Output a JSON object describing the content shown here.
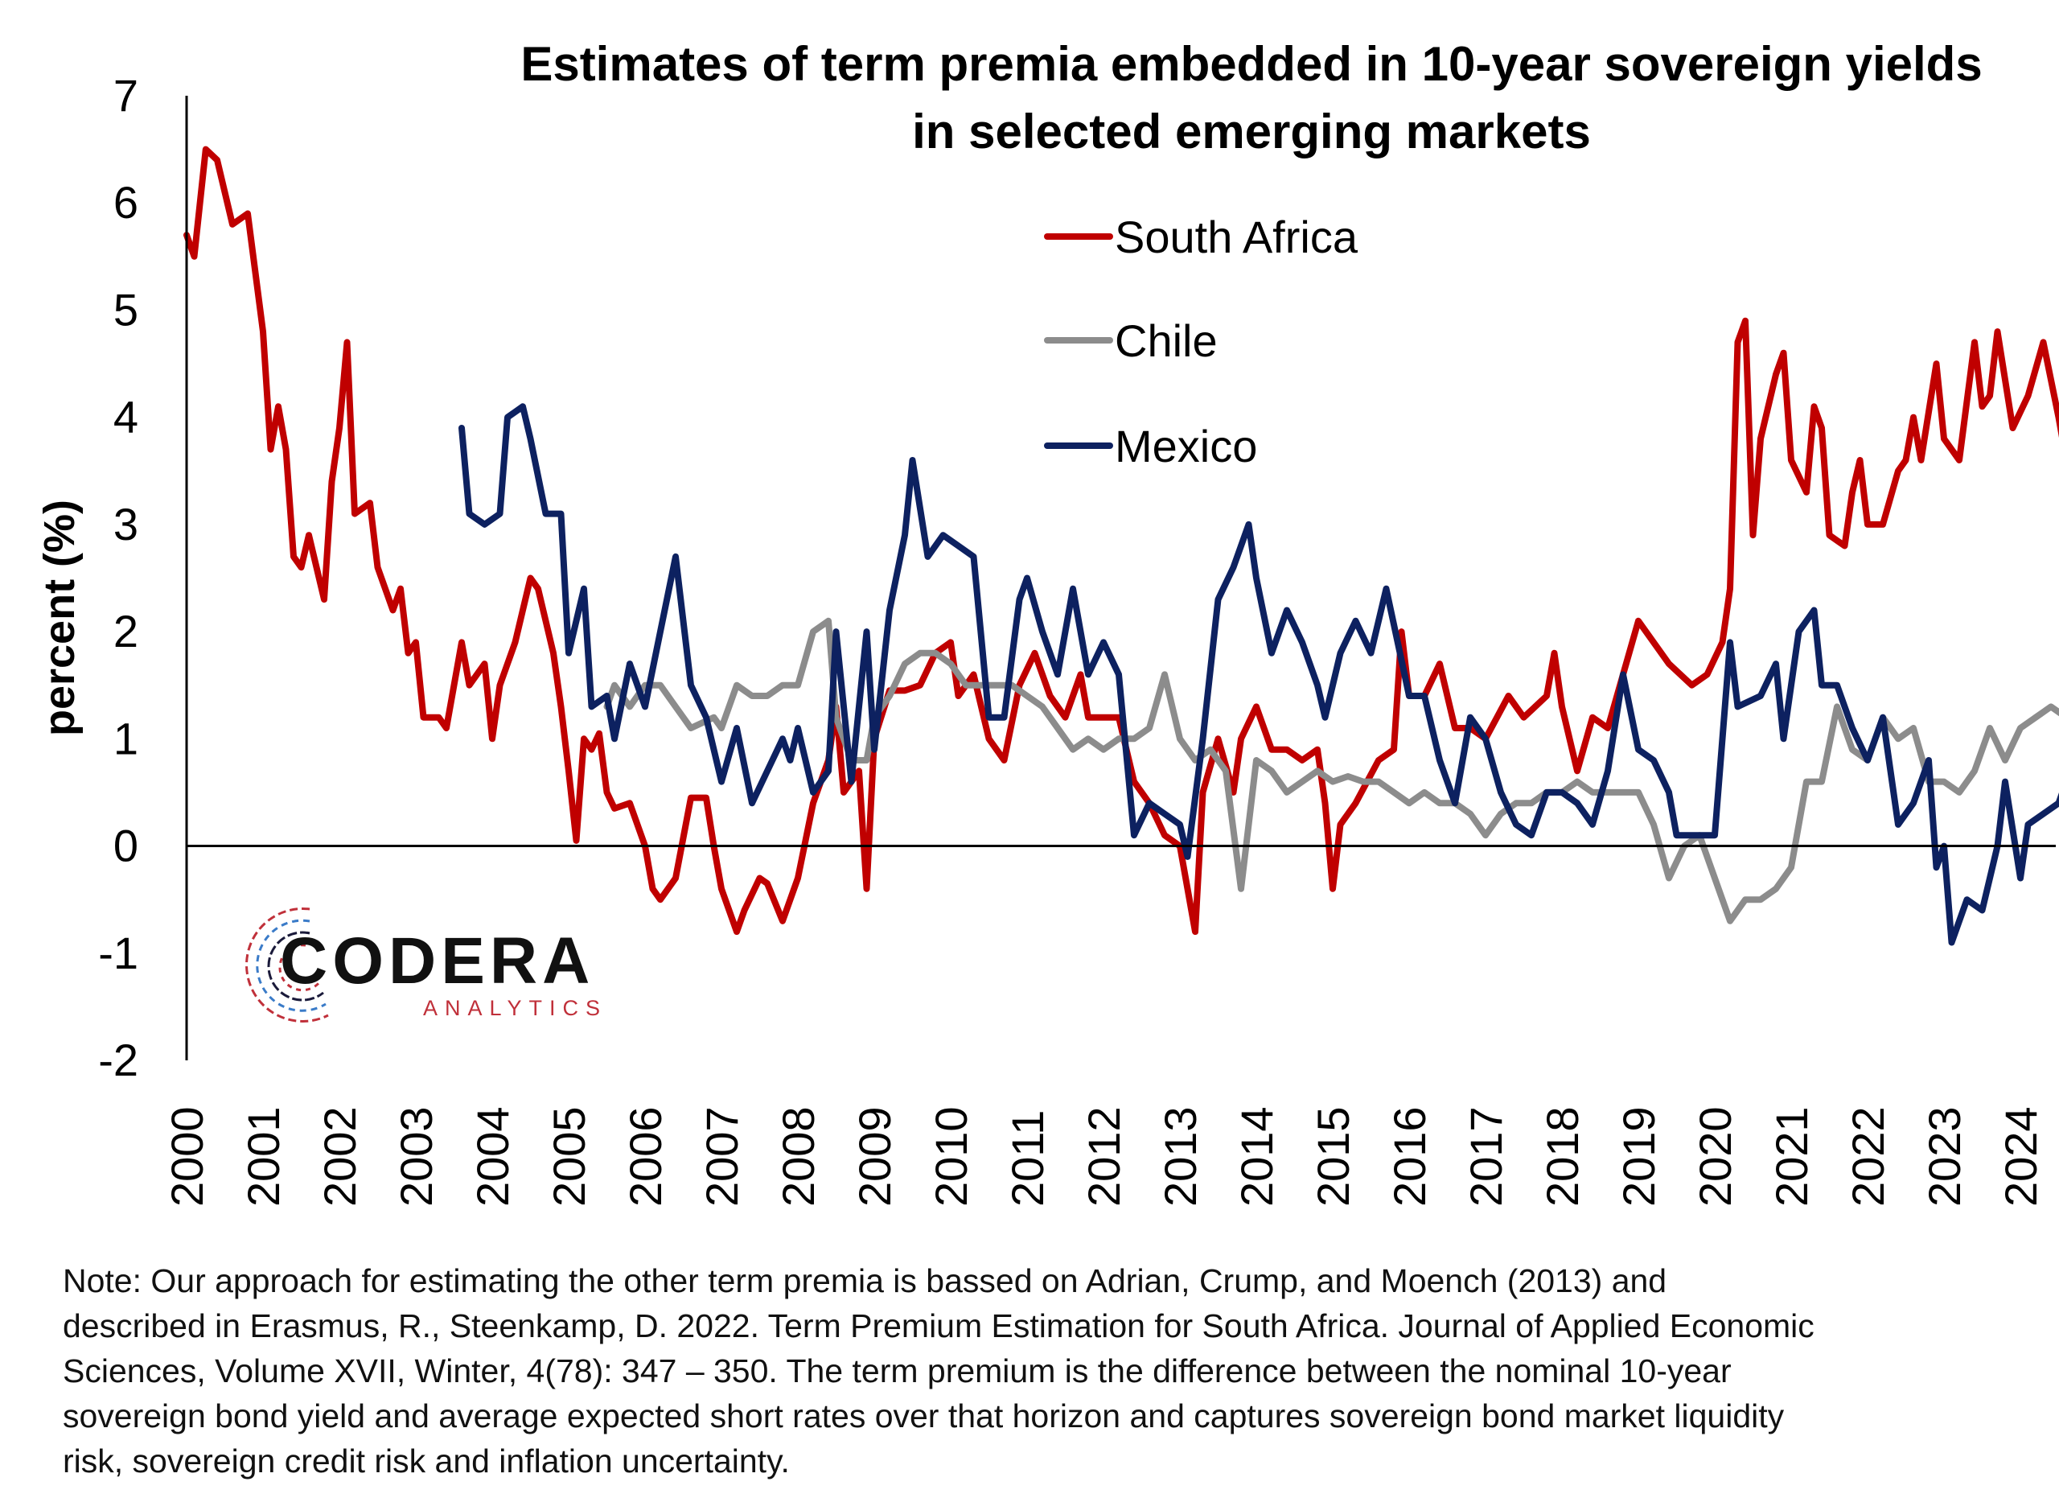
{
  "chart_data": {
    "type": "line",
    "title": [
      "Estimates of term premia embedded in 10-year sovereign yields",
      "in selected emerging markets"
    ],
    "xlabel": "",
    "ylabel": "percent (%)",
    "ylim": [
      -2,
      7
    ],
    "yticks": [
      -2,
      -1,
      0,
      1,
      2,
      3,
      4,
      5,
      6,
      7
    ],
    "xlim": [
      2000,
      2024.7
    ],
    "xticks": [
      "2000",
      "2001",
      "2002",
      "2003",
      "2004",
      "2005",
      "2006",
      "2007",
      "2008",
      "2009",
      "2010",
      "2011",
      "2012",
      "2013",
      "2014",
      "2015",
      "2016",
      "2017",
      "2018",
      "2019",
      "2020",
      "2021",
      "2022",
      "2023",
      "2024"
    ],
    "grid": false,
    "legend_position": "top-center",
    "series": [
      {
        "name": "South Africa",
        "color": "#C00000",
        "x": [
          2000.0,
          2000.1,
          2000.25,
          2000.4,
          2000.6,
          2000.8,
          2001.0,
          2001.1,
          2001.2,
          2001.3,
          2001.4,
          2001.5,
          2001.6,
          2001.8,
          2001.9,
          2002.0,
          2002.1,
          2002.2,
          2002.4,
          2002.5,
          2002.7,
          2002.8,
          2002.9,
          2003.0,
          2003.1,
          2003.3,
          2003.4,
          2003.6,
          2003.7,
          2003.9,
          2004.0,
          2004.1,
          2004.3,
          2004.5,
          2004.6,
          2004.8,
          2004.9,
          2005.0,
          2005.1,
          2005.2,
          2005.3,
          2005.4,
          2005.5,
          2005.6,
          2005.8,
          2006.0,
          2006.1,
          2006.2,
          2006.4,
          2006.6,
          2006.8,
          2006.9,
          2007.0,
          2007.2,
          2007.3,
          2007.5,
          2007.6,
          2007.8,
          2008.0,
          2008.2,
          2008.4,
          2008.5,
          2008.6,
          2008.8,
          2008.9,
          2009.0,
          2009.2,
          2009.4,
          2009.6,
          2009.8,
          2010.0,
          2010.1,
          2010.3,
          2010.5,
          2010.7,
          2010.9,
          2011.1,
          2011.3,
          2011.5,
          2011.7,
          2011.8,
          2012.0,
          2012.2,
          2012.4,
          2012.6,
          2012.8,
          2013.0,
          2013.2,
          2013.3,
          2013.5,
          2013.7,
          2013.8,
          2014.0,
          2014.2,
          2014.4,
          2014.6,
          2014.8,
          2014.9,
          2015.0,
          2015.1,
          2015.3,
          2015.6,
          2015.8,
          2015.9,
          2016.0,
          2016.2,
          2016.4,
          2016.6,
          2016.8,
          2017.0,
          2017.3,
          2017.5,
          2017.8,
          2017.9,
          2018.0,
          2018.2,
          2018.4,
          2018.6,
          2018.8,
          2019.0,
          2019.2,
          2019.4,
          2019.7,
          2019.9,
          2020.1,
          2020.2,
          2020.3,
          2020.4,
          2020.5,
          2020.6,
          2020.8,
          2020.9,
          2021.0,
          2021.2,
          2021.3,
          2021.4,
          2021.5,
          2021.7,
          2021.8,
          2021.9,
          2022.0,
          2022.2,
          2022.4,
          2022.5,
          2022.6,
          2022.7,
          2022.9,
          2023.0,
          2023.2,
          2023.4,
          2023.5,
          2023.6,
          2023.7,
          2023.9,
          2024.1,
          2024.3,
          2024.5,
          2024.6
        ],
        "values": [
          5.7,
          5.5,
          6.5,
          6.4,
          5.8,
          5.9,
          4.8,
          3.7,
          4.1,
          3.7,
          2.7,
          2.6,
          2.9,
          2.3,
          3.4,
          3.9,
          4.7,
          3.1,
          3.2,
          2.6,
          2.2,
          2.4,
          1.8,
          1.9,
          1.2,
          1.2,
          1.1,
          1.9,
          1.5,
          1.7,
          1.0,
          1.5,
          1.9,
          2.5,
          2.4,
          1.8,
          1.3,
          0.7,
          0.05,
          1.0,
          0.9,
          1.05,
          0.5,
          0.35,
          0.4,
          0.0,
          -0.4,
          -0.5,
          -0.3,
          0.45,
          0.45,
          0.0,
          -0.4,
          -0.8,
          -0.6,
          -0.3,
          -0.35,
          -0.7,
          -0.3,
          0.4,
          0.8,
          1.3,
          0.5,
          0.7,
          -0.4,
          1.0,
          1.45,
          1.45,
          1.5,
          1.8,
          1.9,
          1.4,
          1.6,
          1.0,
          0.8,
          1.5,
          1.8,
          1.4,
          1.2,
          1.6,
          1.2,
          1.2,
          1.2,
          0.6,
          0.4,
          0.1,
          0.0,
          -0.8,
          0.5,
          1.0,
          0.5,
          1.0,
          1.3,
          0.9,
          0.9,
          0.8,
          0.9,
          0.4,
          -0.4,
          0.2,
          0.4,
          0.8,
          0.9,
          2.0,
          1.4,
          1.4,
          1.7,
          1.1,
          1.1,
          1.0,
          1.4,
          1.2,
          1.4,
          1.8,
          1.3,
          0.7,
          1.2,
          1.1,
          1.6,
          2.1,
          1.9,
          1.7,
          1.5,
          1.6,
          1.9,
          2.4,
          4.7,
          4.9,
          2.9,
          3.8,
          4.4,
          4.6,
          3.6,
          3.3,
          4.1,
          3.9,
          2.9,
          2.8,
          3.3,
          3.6,
          3.0,
          3.0,
          3.5,
          3.6,
          4.0,
          3.6,
          4.5,
          3.8,
          3.6,
          4.7,
          4.1,
          4.2,
          4.8,
          3.9,
          4.2,
          4.7,
          4.0,
          3.6
        ]
      },
      {
        "name": "Chile",
        "color": "#8C8C8C",
        "x": [
          2005.5,
          2005.6,
          2005.8,
          2006.0,
          2006.2,
          2006.4,
          2006.6,
          2006.9,
          2007.0,
          2007.2,
          2007.4,
          2007.6,
          2007.8,
          2008.0,
          2008.2,
          2008.4,
          2008.5,
          2008.7,
          2008.9,
          2009.0,
          2009.2,
          2009.4,
          2009.6,
          2009.8,
          2010.0,
          2010.2,
          2010.4,
          2010.6,
          2010.8,
          2011.0,
          2011.2,
          2011.4,
          2011.6,
          2011.8,
          2012.0,
          2012.2,
          2012.4,
          2012.6,
          2012.8,
          2013.0,
          2013.2,
          2013.4,
          2013.6,
          2013.8,
          2014.0,
          2014.2,
          2014.4,
          2014.6,
          2014.8,
          2015.0,
          2015.2,
          2015.4,
          2015.6,
          2015.8,
          2016.0,
          2016.2,
          2016.4,
          2016.6,
          2016.8,
          2017.0,
          2017.2,
          2017.4,
          2017.6,
          2017.8,
          2018.0,
          2018.2,
          2018.4,
          2018.6,
          2018.8,
          2019.0,
          2019.2,
          2019.4,
          2019.6,
          2019.8,
          2020.0,
          2020.2,
          2020.4,
          2020.6,
          2020.8,
          2021.0,
          2021.2,
          2021.4,
          2021.6,
          2021.8,
          2022.0,
          2022.2,
          2022.4,
          2022.6,
          2022.8,
          2023.0,
          2023.2,
          2023.4,
          2023.6,
          2023.8,
          2024.0,
          2024.2,
          2024.4,
          2024.6
        ],
        "values": [
          1.3,
          1.5,
          1.3,
          1.5,
          1.5,
          1.3,
          1.1,
          1.2,
          1.1,
          1.5,
          1.4,
          1.4,
          1.5,
          1.5,
          2.0,
          2.1,
          1.2,
          0.8,
          0.8,
          1.2,
          1.4,
          1.7,
          1.8,
          1.8,
          1.7,
          1.5,
          1.5,
          1.5,
          1.5,
          1.4,
          1.3,
          1.1,
          0.9,
          1.0,
          0.9,
          1.0,
          1.0,
          1.1,
          1.6,
          1.0,
          0.8,
          0.9,
          0.7,
          -0.4,
          0.8,
          0.7,
          0.5,
          0.6,
          0.7,
          0.6,
          0.65,
          0.6,
          0.6,
          0.5,
          0.4,
          0.5,
          0.4,
          0.4,
          0.3,
          0.1,
          0.3,
          0.4,
          0.4,
          0.5,
          0.5,
          0.6,
          0.5,
          0.5,
          0.5,
          0.5,
          0.2,
          -0.3,
          0.0,
          0.1,
          -0.3,
          -0.7,
          -0.5,
          -0.5,
          -0.4,
          -0.2,
          0.6,
          0.6,
          1.3,
          0.9,
          0.8,
          1.2,
          1.0,
          1.1,
          0.6,
          0.6,
          0.5,
          0.7,
          1.1,
          0.8,
          1.1,
          1.2,
          1.3,
          1.2
        ]
      },
      {
        "name": "Mexico",
        "color": "#0D2160",
        "x": [
          2003.6,
          2003.7,
          2003.9,
          2004.1,
          2004.2,
          2004.4,
          2004.5,
          2004.7,
          2004.9,
          2005.0,
          2005.2,
          2005.3,
          2005.5,
          2005.6,
          2005.8,
          2006.0,
          2006.2,
          2006.4,
          2006.6,
          2006.8,
          2007.0,
          2007.2,
          2007.4,
          2007.6,
          2007.8,
          2007.9,
          2008.0,
          2008.2,
          2008.4,
          2008.5,
          2008.7,
          2008.9,
          2009.0,
          2009.2,
          2009.4,
          2009.5,
          2009.7,
          2009.9,
          2010.1,
          2010.3,
          2010.5,
          2010.7,
          2010.9,
          2011.0,
          2011.2,
          2011.4,
          2011.6,
          2011.8,
          2012.0,
          2012.2,
          2012.4,
          2012.6,
          2012.8,
          2013.0,
          2013.1,
          2013.3,
          2013.5,
          2013.7,
          2013.9,
          2014.0,
          2014.2,
          2014.4,
          2014.6,
          2014.8,
          2014.9,
          2015.1,
          2015.3,
          2015.5,
          2015.7,
          2016.0,
          2016.2,
          2016.4,
          2016.6,
          2016.8,
          2017.0,
          2017.2,
          2017.4,
          2017.6,
          2017.8,
          2018.0,
          2018.2,
          2018.4,
          2018.6,
          2018.8,
          2019.0,
          2019.2,
          2019.4,
          2019.5,
          2019.8,
          2020.0,
          2020.2,
          2020.3,
          2020.6,
          2020.8,
          2020.9,
          2021.1,
          2021.3,
          2021.4,
          2021.6,
          2021.8,
          2022.0,
          2022.2,
          2022.4,
          2022.6,
          2022.8,
          2022.9,
          2023.0,
          2023.1,
          2023.3,
          2023.5,
          2023.7,
          2023.8,
          2024.0,
          2024.1,
          2024.3,
          2024.5,
          2024.6
        ],
        "values": [
          3.9,
          3.1,
          3.0,
          3.1,
          4.0,
          4.1,
          3.8,
          3.1,
          3.1,
          1.8,
          2.4,
          1.3,
          1.4,
          1.0,
          1.7,
          1.3,
          2.0,
          2.7,
          1.5,
          1.2,
          0.6,
          1.1,
          0.4,
          0.7,
          1.0,
          0.8,
          1.1,
          0.5,
          0.7,
          2.0,
          0.6,
          2.0,
          0.9,
          2.2,
          2.9,
          3.6,
          2.7,
          2.9,
          2.8,
          2.7,
          1.2,
          1.2,
          2.3,
          2.5,
          2.0,
          1.6,
          2.4,
          1.6,
          1.9,
          1.6,
          0.1,
          0.4,
          0.3,
          0.2,
          -0.1,
          1.0,
          2.3,
          2.6,
          3.0,
          2.5,
          1.8,
          2.2,
          1.9,
          1.5,
          1.2,
          1.8,
          2.1,
          1.8,
          2.4,
          1.4,
          1.4,
          0.8,
          0.4,
          1.2,
          1.0,
          0.5,
          0.2,
          0.1,
          0.5,
          0.5,
          0.4,
          0.2,
          0.7,
          1.6,
          0.9,
          0.8,
          0.5,
          0.1,
          0.1,
          0.1,
          1.9,
          1.3,
          1.4,
          1.7,
          1.0,
          2.0,
          2.2,
          1.5,
          1.5,
          1.1,
          0.8,
          1.2,
          0.2,
          0.4,
          0.8,
          -0.2,
          0.0,
          -0.9,
          -0.5,
          -0.6,
          0.0,
          0.6,
          -0.3,
          0.2,
          0.3,
          0.4,
          0.6
        ]
      }
    ]
  },
  "note_lines": [
    "Note: Our approach for estimating the other term premia is bassed on Adrian, Crump, and Moench (2013) and",
    "described in Erasmus, R., Steenkamp, D. 2022. Term Premium Estimation for South Africa. Journal of Applied Economic",
    "Sciences, Volume XVII, Winter, 4(78): 347 – 350.  The term premium is the difference between the nominal 10-year",
    "sovereign bond yield and average expected short rates over that horizon and captures sovereign bond market liquidity",
    "risk, sovereign credit risk and inflation uncertainty."
  ],
  "logo": {
    "name": "CODERA",
    "sub": "ANALYTICS",
    "sub_color": "#C0303A",
    "sub_color2": "#3A7BC8"
  }
}
